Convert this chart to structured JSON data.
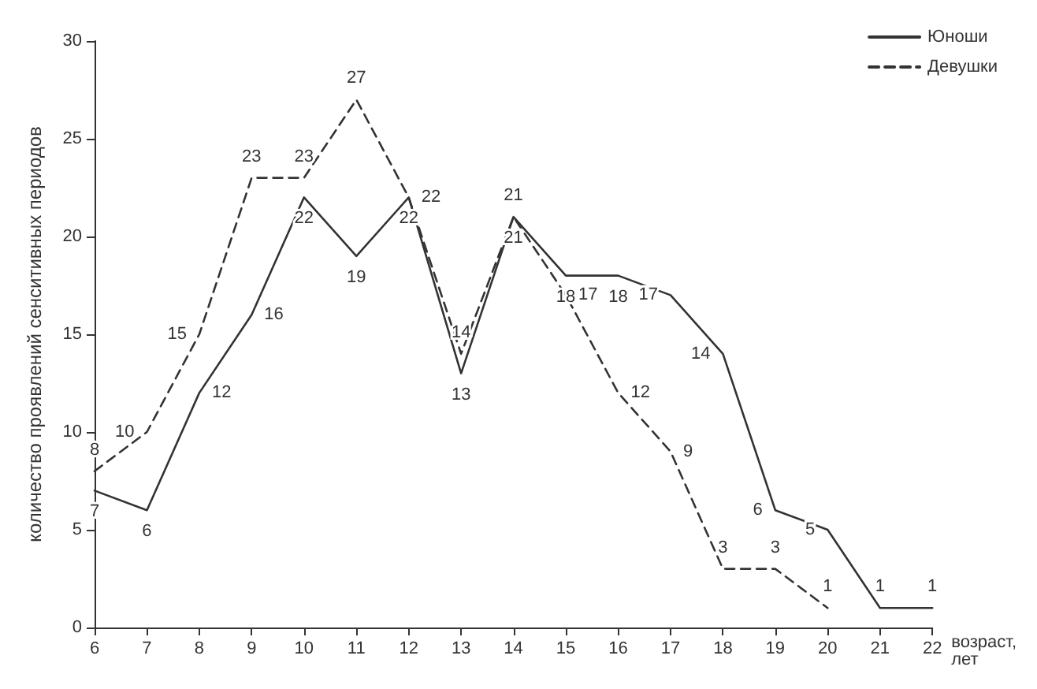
{
  "chart_data": {
    "type": "line",
    "xlabel": "возраст,\nлет",
    "ylabel": "количество проявлений сенситивных периодов",
    "x": [
      6,
      7,
      8,
      9,
      10,
      11,
      12,
      13,
      14,
      15,
      16,
      17,
      18,
      19,
      20,
      21,
      22
    ],
    "series": [
      {
        "name": "Юноши",
        "color": "#333333",
        "line_style": "solid",
        "values": [
          7,
          6,
          12,
          16,
          22,
          19,
          22,
          13,
          21,
          18,
          18,
          17,
          14,
          6,
          5,
          1,
          1
        ]
      },
      {
        "name": "Девушки",
        "color": "#333333",
        "line_style": "dashed",
        "values": [
          8,
          10,
          15,
          23,
          23,
          27,
          22,
          14,
          21,
          17,
          12,
          9,
          3,
          3,
          1,
          null,
          null
        ]
      }
    ],
    "xlim": [
      6,
      22
    ],
    "xticks": [
      6,
      7,
      8,
      9,
      10,
      11,
      12,
      13,
      14,
      15,
      16,
      17,
      18,
      19,
      20,
      21,
      22
    ],
    "ylim": [
      0,
      30
    ],
    "yticks": [
      0,
      5,
      10,
      15,
      20,
      25,
      30
    ],
    "grid": false,
    "legend": "top right",
    "marker": "none",
    "data_labels": true
  }
}
